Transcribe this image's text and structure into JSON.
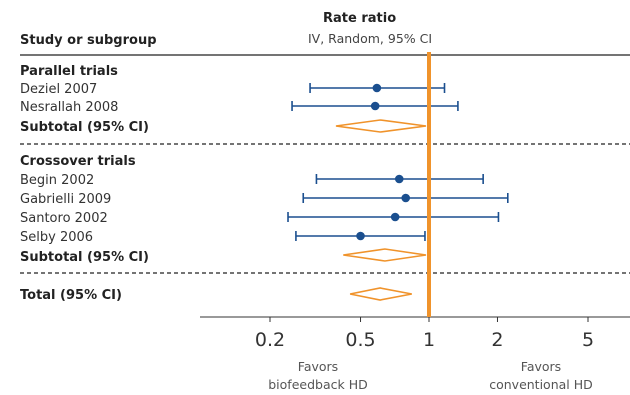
{
  "chart_data": {
    "type": "forest",
    "header": {
      "left": "Study or subgroup",
      "right_title": "Rate ratio",
      "right_subtitle": "IV, Random, 95% CI"
    },
    "x_scale": "log",
    "xlim": [
      0.1,
      8
    ],
    "reference_value": 1,
    "ticks": [
      {
        "value": 0.2,
        "label": "0.2"
      },
      {
        "value": 0.5,
        "label": "0.5"
      },
      {
        "value": 1,
        "label": "1"
      },
      {
        "value": 2,
        "label": "2"
      },
      {
        "value": 5,
        "label": "5"
      }
    ],
    "favors_left": [
      "Favors",
      "biofeedback HD"
    ],
    "favors_right": [
      "Favors",
      "conventional HD"
    ],
    "groups": [
      {
        "name": "Parallel trials",
        "studies": [
          {
            "label": "Deziel 2007",
            "est": 0.59,
            "lo": 0.3,
            "hi": 1.17
          },
          {
            "label": "Nesrallah 2008",
            "est": 0.58,
            "lo": 0.25,
            "hi": 1.34
          }
        ],
        "subtotal": {
          "label": "Subtotal (95% CI)",
          "est": 0.61,
          "lo": 0.39,
          "hi": 0.97
        }
      },
      {
        "name": "Crossover trials",
        "studies": [
          {
            "label": "Begin 2002",
            "est": 0.74,
            "lo": 0.32,
            "hi": 1.73
          },
          {
            "label": "Gabrielli 2009",
            "est": 0.79,
            "lo": 0.28,
            "hi": 2.22
          },
          {
            "label": "Santoro 2002",
            "est": 0.71,
            "lo": 0.24,
            "hi": 2.02
          },
          {
            "label": "Selby 2006",
            "est": 0.5,
            "lo": 0.26,
            "hi": 0.96
          }
        ],
        "subtotal": {
          "label": "Subtotal (95% CI)",
          "est": 0.64,
          "lo": 0.42,
          "hi": 0.97
        }
      }
    ],
    "total": {
      "label": "Total (95% CI)",
      "est": 0.61,
      "lo": 0.45,
      "hi": 0.84
    }
  }
}
